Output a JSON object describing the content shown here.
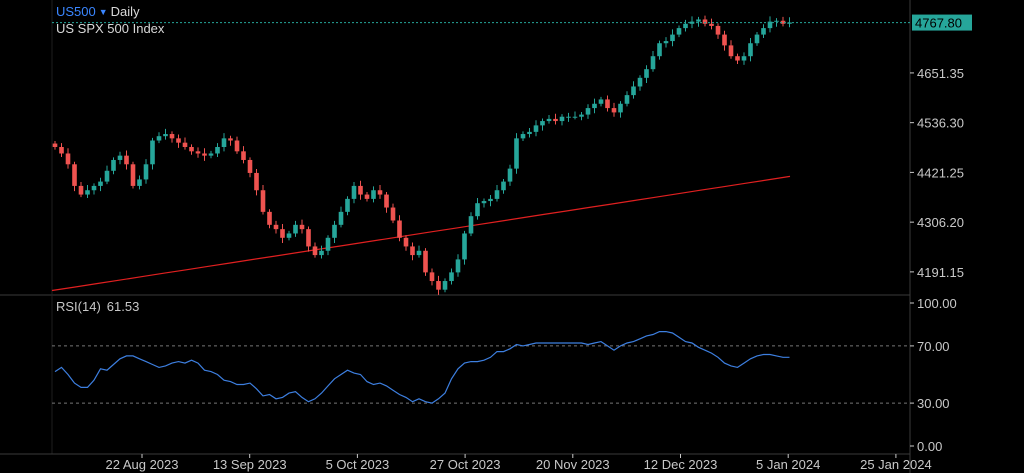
{
  "header": {
    "symbol": "US500",
    "timeframe": "Daily",
    "instrument_name": "US SPX 500 Index"
  },
  "colors": {
    "up": "#26a69a",
    "down": "#ef5350",
    "ma_line": "#e02020",
    "rsi_line": "#3d7fe0",
    "price_badge": "#26a69a",
    "grid": "#3a3a3a",
    "text": "#c8c8c8"
  },
  "price_axis": {
    "ticks": [
      "4651.35",
      "4536.30",
      "4421.25",
      "4306.20",
      "4191.15"
    ],
    "range": [
      4140,
      4820
    ],
    "current_price": "4767.80"
  },
  "rsi_panel": {
    "label": "RSI(14)",
    "value": "61.53",
    "ticks": [
      "100.00",
      "70.00",
      "30.00",
      "0.00"
    ],
    "levels": [
      70,
      30
    ]
  },
  "time_axis": {
    "labels": [
      "22 Aug 2023",
      "13 Sep 2023",
      "5 Oct 2023",
      "27 Oct 2023",
      "20 Nov 2023",
      "12 Dec 2023",
      "5 Jan 2024",
      "25 Jan 2024"
    ]
  },
  "chart_data": {
    "type": "candlestick",
    "candles_close": [
      4480,
      4465,
      4440,
      4390,
      4370,
      4380,
      4390,
      4400,
      4425,
      4450,
      4460,
      4440,
      4390,
      4405,
      4440,
      4495,
      4505,
      4510,
      4500,
      4490,
      4480,
      4470,
      4465,
      4460,
      4465,
      4480,
      4500,
      4495,
      4470,
      4450,
      4420,
      4380,
      4330,
      4300,
      4290,
      4270,
      4280,
      4300,
      4290,
      4250,
      4230,
      4240,
      4270,
      4300,
      4330,
      4360,
      4390,
      4370,
      4360,
      4380,
      4370,
      4340,
      4310,
      4270,
      4250,
      4230,
      4240,
      4190,
      4170,
      4150,
      4170,
      4190,
      4220,
      4280,
      4320,
      4350,
      4355,
      4360,
      4380,
      4400,
      4430,
      4500,
      4510,
      4515,
      4530,
      4540,
      4545,
      4540,
      4550,
      4550,
      4550,
      4555,
      4570,
      4580,
      4590,
      4570,
      4560,
      4580,
      4600,
      4620,
      4640,
      4660,
      4690,
      4720,
      4725,
      4740,
      4755,
      4765,
      4770,
      4775,
      4765,
      4760,
      4740,
      4715,
      4690,
      4680,
      4690,
      4720,
      4740,
      4755,
      4770,
      4772,
      4765,
      4768
    ],
    "ma_series": [
      4148,
      4156,
      4164,
      4172,
      4180,
      4188,
      4196,
      4204,
      4212,
      4220,
      4228,
      4236,
      4244,
      4252,
      4260,
      4268,
      4276,
      4284,
      4292,
      4300,
      4308,
      4316,
      4324,
      4332,
      4340,
      4348,
      4356,
      4364,
      4372,
      4380,
      4388,
      4396,
      4404,
      4412
    ],
    "rsi": [
      52,
      55,
      50,
      44,
      41,
      41,
      46,
      54,
      53,
      57,
      61,
      63,
      63,
      61,
      59,
      57,
      55,
      56,
      58,
      59,
      58,
      60,
      58,
      53,
      52,
      50,
      46,
      45,
      43,
      43,
      44,
      40,
      35,
      36,
      33,
      34,
      37,
      38,
      34,
      31,
      33,
      37,
      42,
      47,
      50,
      53,
      51,
      50,
      45,
      43,
      44,
      42,
      39,
      36,
      34,
      31,
      33,
      31,
      30,
      33,
      37,
      47,
      54,
      58,
      59,
      59,
      60,
      62,
      66,
      66,
      68,
      71,
      70,
      71,
      72,
      72,
      72,
      72,
      72,
      72,
      72,
      72,
      71,
      72,
      73,
      70,
      67,
      70,
      72,
      73,
      75,
      77,
      78,
      80,
      80,
      79,
      76,
      73,
      72,
      69,
      67,
      65,
      62,
      58,
      56,
      55,
      58,
      61,
      63,
      64,
      64,
      63,
      62,
      62
    ]
  }
}
